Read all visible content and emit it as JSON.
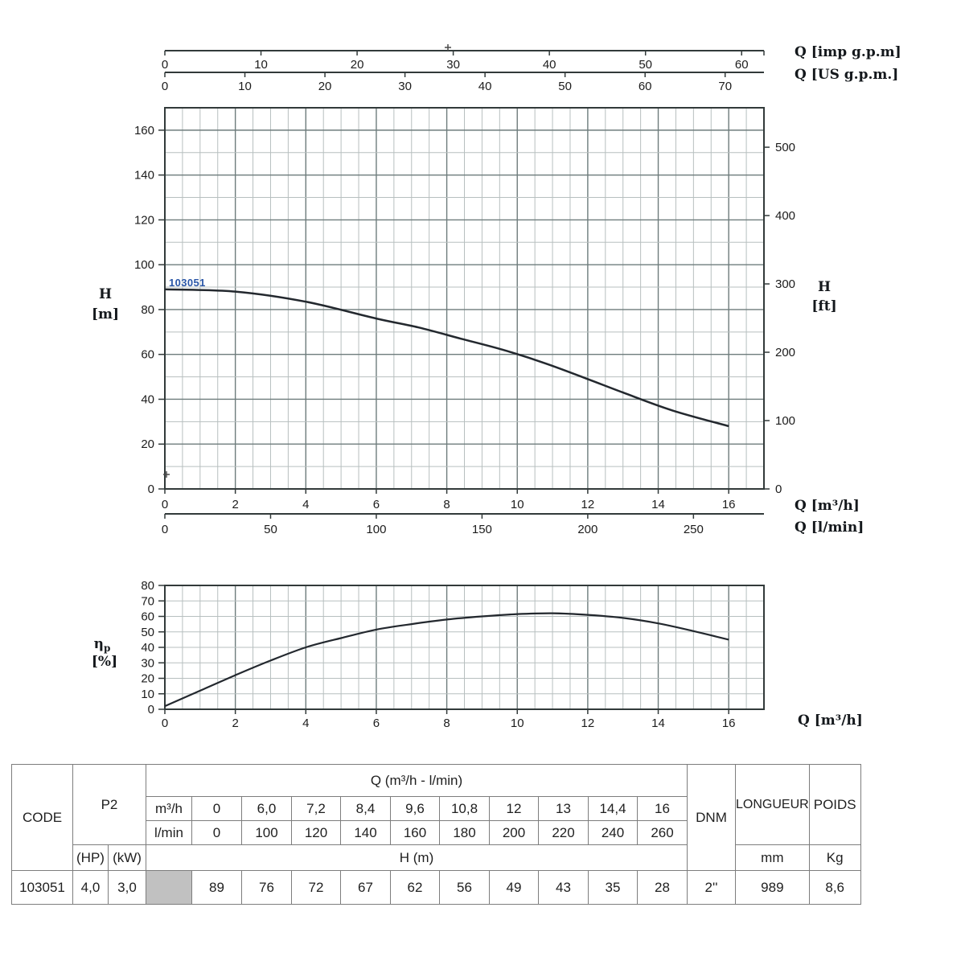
{
  "colors": {
    "curve": "#23282e",
    "grid_minor": "#b7bfbf",
    "grid_major": "#6e7c7c",
    "axis": "#323a3a",
    "tick_text": "#1c1c1c",
    "series_label": "#2b57a8",
    "table_border": "#7d7d7d",
    "table_gray_cell": "#c1c1c1",
    "plus_mark": "#4a4a4a"
  },
  "chart_data": [
    {
      "type": "line",
      "name": "head-flow-curve",
      "title": "Pump head vs flow",
      "xlabel": "Q [m³/h]",
      "ylabel_left_lines": [
        "H",
        "[m]"
      ],
      "ylabel_right_lines": [
        "H",
        "[ft]"
      ],
      "xlim": [
        0,
        17
      ],
      "ylim_m": [
        0,
        170
      ],
      "ylim_ft": [
        0,
        557
      ],
      "x_ticks": [
        0,
        2,
        4,
        6,
        8,
        10,
        12,
        14,
        16
      ],
      "y_ticks_m": [
        0,
        20,
        40,
        60,
        80,
        100,
        120,
        140,
        160
      ],
      "right_ticks_ft": [
        0,
        100,
        200,
        300,
        400,
        500
      ],
      "grid": {
        "x_minor": 0.5,
        "x_major": 2,
        "y_minor": 10,
        "y_major": 20
      },
      "top_axes": [
        {
          "label": "Q [imp g.p.m]",
          "ticks": [
            0,
            10,
            20,
            30,
            40,
            50,
            60
          ],
          "units_per_m3h": 3.666
        },
        {
          "label": "Q [US g.p.m.]",
          "ticks": [
            0,
            10,
            20,
            30,
            40,
            50,
            60,
            70
          ],
          "units_per_m3h": 4.403
        }
      ],
      "bottom_axis_lmin": {
        "label": "Q [l/min]",
        "ticks": [
          0,
          50,
          100,
          150,
          200,
          250
        ],
        "units_per_m3h": 16.667
      },
      "series": [
        {
          "name": "103051",
          "x": [
            0,
            2,
            4,
            6,
            7.2,
            8.4,
            9.6,
            10.8,
            12,
            13,
            14.4,
            16
          ],
          "y_m": [
            89,
            88,
            83.5,
            76,
            72,
            67,
            62,
            56,
            49,
            43,
            35,
            28
          ]
        }
      ]
    },
    {
      "type": "line",
      "name": "efficiency-curve",
      "title": "Pump efficiency vs flow",
      "xlabel": "Q [m³/h]",
      "ylabel_lines": [
        "η",
        "p",
        "[%]"
      ],
      "xlim": [
        0,
        17
      ],
      "ylim": [
        0,
        80
      ],
      "x_ticks": [
        0,
        2,
        4,
        6,
        8,
        10,
        12,
        14,
        16
      ],
      "y_ticks": [
        0,
        10,
        20,
        30,
        40,
        50,
        60,
        70,
        80
      ],
      "grid": {
        "x_minor": 0.5,
        "x_major": 2,
        "y_minor": 10
      },
      "x": [
        0,
        1,
        2,
        3,
        4,
        5,
        6,
        7,
        8,
        9,
        10,
        11,
        12,
        13,
        14,
        15,
        16
      ],
      "y": [
        2,
        12,
        22,
        31.5,
        40,
        46,
        51.5,
        55,
        58,
        60,
        61.5,
        62,
        61,
        59,
        55.5,
        50.5,
        45
      ]
    }
  ],
  "table": {
    "headers": {
      "code": "CODE",
      "p2": "P2",
      "hp": "(HP)",
      "kw": "(kW)",
      "q_header": "Q (m³/h - l/min)",
      "m3h_label": "m³/h",
      "lmin_label": "l/min",
      "h_m": "H (m)",
      "dnm": "DNM",
      "longueur": "LONGUEUR",
      "poids": "POIDS",
      "mm": "mm",
      "kg": "Kg"
    },
    "q_m3h": [
      "0",
      "6,0",
      "7,2",
      "8,4",
      "9,6",
      "10,8",
      "12",
      "13",
      "14,4",
      "16"
    ],
    "q_lmin": [
      "0",
      "100",
      "120",
      "140",
      "160",
      "180",
      "200",
      "220",
      "240",
      "260"
    ],
    "row": {
      "code": "103051",
      "hp": "4,0",
      "kw": "3,0",
      "h_values": [
        "89",
        "76",
        "72",
        "67",
        "62",
        "56",
        "49",
        "43",
        "35",
        "28"
      ],
      "dnm": "2''",
      "longueur_mm": "989",
      "poids_kg": "8,6"
    }
  }
}
